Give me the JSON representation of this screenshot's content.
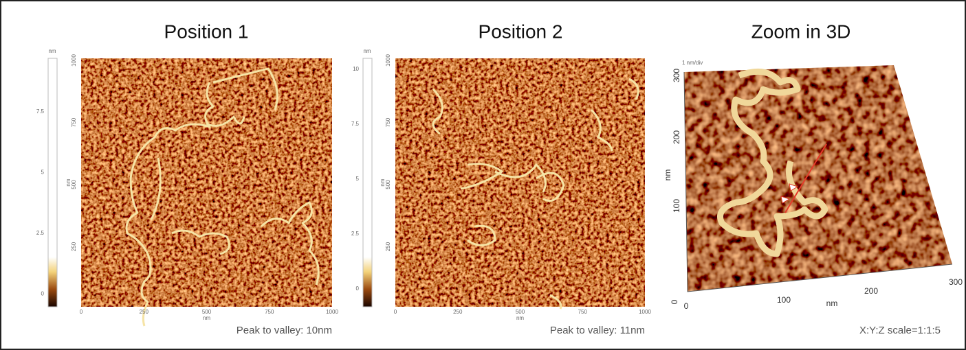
{
  "panels": [
    {
      "title": "Position 1",
      "colorbar": {
        "unit": "nm",
        "ticks": [
          "7.5",
          "5",
          "2.5",
          "0"
        ]
      },
      "y_axis": {
        "label": "nm",
        "ticks": [
          "1000",
          "750",
          "500",
          "250"
        ]
      },
      "x_axis": {
        "label": "nm",
        "ticks": [
          "0",
          "250",
          "500",
          "750",
          "1000"
        ]
      },
      "caption": "Peak to valley: 10nm"
    },
    {
      "title": "Position 2",
      "colorbar": {
        "unit": "nm",
        "ticks": [
          "10",
          "7.5",
          "5",
          "2.5",
          "0"
        ]
      },
      "y_axis": {
        "label": "nm",
        "ticks": [
          "1000",
          "750",
          "500",
          "250"
        ]
      },
      "x_axis": {
        "label": "nm",
        "ticks": [
          "0",
          "250",
          "500",
          "750",
          "1000"
        ]
      },
      "caption": "Peak to valley: 11nm"
    },
    {
      "title": "Zoom in 3D",
      "z_axis": {
        "label": "1 nm/div"
      },
      "y_axis": {
        "label": "nm",
        "ticks": [
          "300",
          "200",
          "100",
          "0"
        ]
      },
      "x_axis": {
        "label": "nm",
        "ticks": [
          "0",
          "100",
          "200",
          "300"
        ]
      },
      "caption": "X:Y:Z scale=1:1:5"
    }
  ]
}
